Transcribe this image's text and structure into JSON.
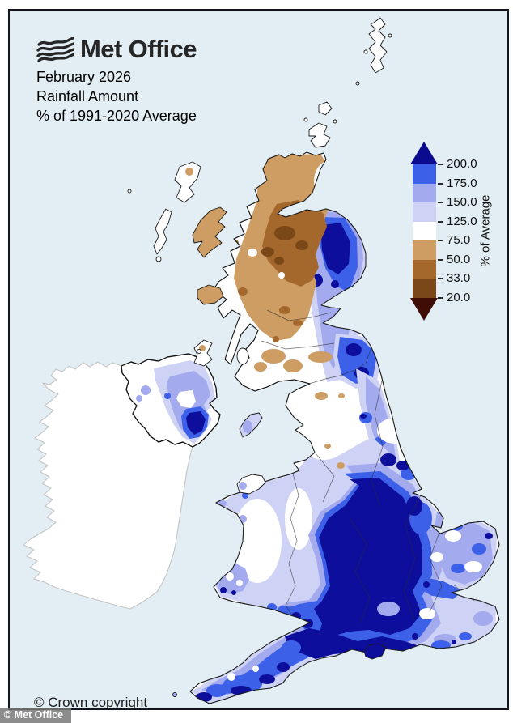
{
  "header": {
    "logo_label": "Met Office",
    "title_lines": [
      "February 2026",
      "Rainfall Amount",
      "% of 1991-2020 Average"
    ]
  },
  "legend": {
    "axis_label": "% of Average",
    "tick_labels": [
      "200.0",
      "175.0",
      "150.0",
      "125.0",
      "75.0",
      "50.0",
      "33.0",
      "20.0"
    ],
    "segment_colors": [
      "#3c61e8",
      "#a3aaee",
      "#ced3f6",
      "#ffffff",
      "#cd9d64",
      "#a4682c",
      "#7a4718"
    ],
    "arrow_top_color": "#0a0b8f",
    "arrow_bottom_color": "#400c06"
  },
  "map": {
    "sea_color": "#e3eef4",
    "frame_color": "#15151f",
    "coast_color": "#1a1a1a",
    "ireland_outline_color": "#c4c4c4",
    "palette": {
      "navy": "#0d0e9b",
      "royal": "#3c61e8",
      "periwinkle": "#a3aaee",
      "lavender": "#ced3f6",
      "white": "#ffffff",
      "tan": "#cd9d64",
      "brown": "#a4682c",
      "dark_brown": "#7a4718",
      "maroon": "#400c06"
    }
  },
  "footer": {
    "crown_copyright": "© Crown copyright",
    "watermark": "© Met Office"
  }
}
